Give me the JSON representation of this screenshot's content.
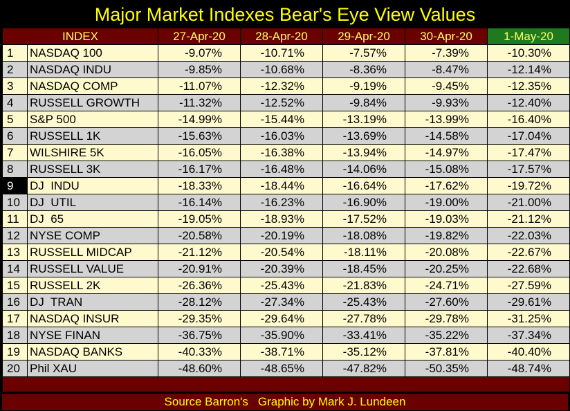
{
  "chart_data": {
    "type": "table",
    "title": "Major Market Indexes Bear's Eye View Values",
    "columns": [
      "INDEX",
      "27-Apr-20",
      "28-Apr-20",
      "29-Apr-20",
      "30-Apr-20",
      "1-May-20"
    ],
    "rows": [
      {
        "rank": "1",
        "name": "NASDAQ 100",
        "values": [
          "-9.07%",
          "-10.71%",
          "-7.57%",
          "-7.39%",
          "-10.30%"
        ]
      },
      {
        "rank": "2",
        "name": "NASDAQ INDU",
        "values": [
          "-9.85%",
          "-10.68%",
          "-8.36%",
          "-8.47%",
          "-12.14%"
        ]
      },
      {
        "rank": "3",
        "name": "NASDAQ COMP",
        "values": [
          "-11.07%",
          "-12.32%",
          "-9.19%",
          "-9.45%",
          "-12.35%"
        ]
      },
      {
        "rank": "4",
        "name": "RUSSELL GROWTH",
        "values": [
          "-11.32%",
          "-12.52%",
          "-9.84%",
          "-9.93%",
          "-12.40%"
        ]
      },
      {
        "rank": "5",
        "name": "S&P 500",
        "values": [
          "-14.99%",
          "-15.44%",
          "-13.19%",
          "-13.99%",
          "-16.40%"
        ]
      },
      {
        "rank": "6",
        "name": "RUSSELL 1K",
        "values": [
          "-15.63%",
          "-16.03%",
          "-13.69%",
          "-14.58%",
          "-17.04%"
        ]
      },
      {
        "rank": "7",
        "name": "WILSHIRE 5K",
        "values": [
          "-16.05%",
          "-16.38%",
          "-13.94%",
          "-14.97%",
          "-17.47%"
        ]
      },
      {
        "rank": "8",
        "name": "RUSSELL 3K",
        "values": [
          "-16.17%",
          "-16.48%",
          "-14.06%",
          "-15.08%",
          "-17.57%"
        ]
      },
      {
        "rank": "9",
        "name": "DJ  INDU",
        "values": [
          "-18.33%",
          "-18.44%",
          "-16.64%",
          "-17.62%",
          "-19.72%"
        ],
        "highlight": true
      },
      {
        "rank": "10",
        "name": "DJ  UTIL",
        "values": [
          "-16.14%",
          "-16.23%",
          "-16.90%",
          "-19.00%",
          "-21.00%"
        ]
      },
      {
        "rank": "11",
        "name": "DJ  65",
        "values": [
          "-19.05%",
          "-18.93%",
          "-17.52%",
          "-19.03%",
          "-21.12%"
        ]
      },
      {
        "rank": "12",
        "name": "NYSE COMP",
        "values": [
          "-20.58%",
          "-20.19%",
          "-18.08%",
          "-19.82%",
          "-22.03%"
        ]
      },
      {
        "rank": "13",
        "name": "RUSSELL MIDCAP",
        "values": [
          "-21.12%",
          "-20.54%",
          "-18.11%",
          "-20.08%",
          "-22.67%"
        ]
      },
      {
        "rank": "14",
        "name": "RUSSELL VALUE",
        "values": [
          "-20.91%",
          "-20.39%",
          "-18.45%",
          "-20.25%",
          "-22.68%"
        ]
      },
      {
        "rank": "15",
        "name": "RUSSELL 2K",
        "values": [
          "-26.36%",
          "-25.43%",
          "-21.83%",
          "-24.71%",
          "-27.59%"
        ]
      },
      {
        "rank": "16",
        "name": "DJ  TRAN",
        "values": [
          "-28.12%",
          "-27.34%",
          "-25.43%",
          "-27.60%",
          "-29.61%"
        ]
      },
      {
        "rank": "17",
        "name": "NASDAQ INSUR",
        "values": [
          "-29.35%",
          "-29.64%",
          "-27.78%",
          "-29.78%",
          "-31.25%"
        ]
      },
      {
        "rank": "18",
        "name": "NYSE FINAN",
        "values": [
          "-36.75%",
          "-35.90%",
          "-33.41%",
          "-35.22%",
          "-37.34%"
        ]
      },
      {
        "rank": "19",
        "name": "NASDAQ BANKS",
        "values": [
          "-40.33%",
          "-38.71%",
          "-35.12%",
          "-37.81%",
          "-40.40%"
        ]
      },
      {
        "rank": "20",
        "name": "Phil XAU",
        "values": [
          "-48.60%",
          "-48.65%",
          "-47.82%",
          "-50.35%",
          "-48.74%"
        ]
      }
    ]
  },
  "footer": {
    "source": "Source Barron's",
    "credit": "Graphic by Mark J. Lundeen"
  },
  "colors": {
    "background": "#000000",
    "title": "#ffff00",
    "header_bg": "#6b0000",
    "latest_header_bg": "#1f7a1f",
    "odd_row": "#fffacd",
    "even_row": "#d3d3d3"
  }
}
